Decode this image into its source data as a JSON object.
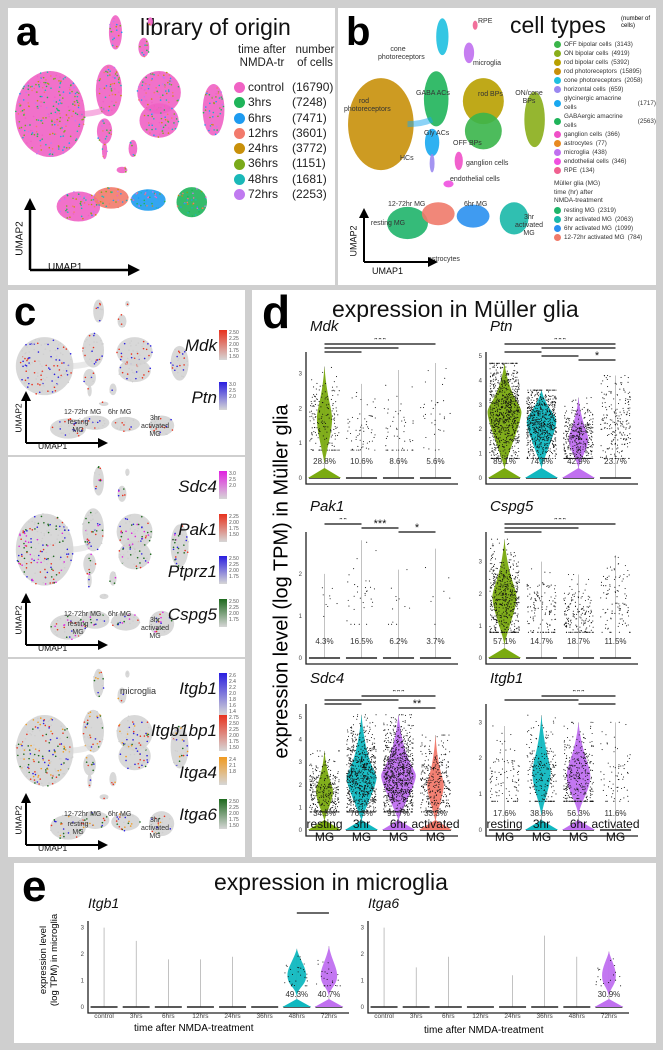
{
  "panel_a": {
    "letter": "a",
    "title": "library of origin",
    "legend_header": [
      "time after NMDA-tr",
      "number of cells"
    ],
    "legend": [
      {
        "label": "control",
        "count": "(16790)",
        "color": "#f062c4"
      },
      {
        "label": "3hrs",
        "count": "(7248)",
        "color": "#1fb45a"
      },
      {
        "label": "6hrs",
        "count": "(7471)",
        "color": "#1e9bf0"
      },
      {
        "label": "12hrs",
        "count": "(3601)",
        "color": "#f27a6c"
      },
      {
        "label": "24hrs",
        "count": "(3772)",
        "color": "#c8900a"
      },
      {
        "label": "36hrs",
        "count": "(1151)",
        "color": "#7aaa1a"
      },
      {
        "label": "48hrs",
        "count": "(1681)",
        "color": "#1ab8b8"
      },
      {
        "label": "72hrs",
        "count": "(2253)",
        "color": "#c07af0"
      }
    ],
    "axis_x": "UMAP1",
    "axis_y": "UMAP2"
  },
  "panel_b": {
    "letter": "b",
    "title": "cell types",
    "title_note": "(number of cells)",
    "legend": [
      {
        "label": "OFF bipolar cells",
        "count": "(3143)",
        "color": "#3ab54a"
      },
      {
        "label": "ON bipolar cells",
        "count": "(4919)",
        "color": "#8aae1a"
      },
      {
        "label": "rod bipolar cells",
        "count": "(5392)",
        "color": "#b8a000"
      },
      {
        "label": "rod photoreceptors",
        "count": "(15895)",
        "color": "#c8900a"
      },
      {
        "label": "cone photoreceptors",
        "count": "(2058)",
        "color": "#1ec0e0"
      },
      {
        "label": "horizontal cells",
        "count": "(659)",
        "color": "#9a88f0"
      },
      {
        "label": "glycinergic amacrine cells",
        "count": "(1717)",
        "color": "#18a8f0"
      },
      {
        "label": "GABAergic amacrine cells",
        "count": "(2563)",
        "color": "#1fb45a"
      },
      {
        "label": "ganglion cells",
        "count": "(366)",
        "color": "#f050c8"
      },
      {
        "label": "astrocytes",
        "count": "(77)",
        "color": "#e88a20"
      },
      {
        "label": "microglia",
        "count": "(438)",
        "color": "#c070f0"
      },
      {
        "label": "endothelial cells",
        "count": "(346)",
        "color": "#f050e0"
      },
      {
        "label": "RPE",
        "count": "(134)",
        "color": "#f06090"
      }
    ],
    "mg_header": [
      "Müller glia (MG)",
      "time (hr) after",
      "NMDA-treatment"
    ],
    "mg_legend": [
      {
        "label": "resting MG",
        "count": "(2319)",
        "color": "#1fb46a"
      },
      {
        "label": "3hr activated MG",
        "count": "(2063)",
        "color": "#1ab8a8"
      },
      {
        "label": "6hr activated MG",
        "count": "(1099)",
        "color": "#2a90f0"
      },
      {
        "label": "12-72hr activated MG",
        "count": "(784)",
        "color": "#f07a6a"
      }
    ],
    "umap_labels": {
      "cone": "cone photoreceptors",
      "rpe": "RPE",
      "microglia": "microglia",
      "rod": "rod photoreceptors",
      "gaba": "GABA ACs",
      "gly": "Gly ACs",
      "hc": "HCs",
      "rodbp": "rod BPs",
      "oncone": "ON/cone BPs",
      "offbp": "OFF BPs",
      "ganglion": "ganglion cells",
      "endo": "endothelial cells",
      "mg1272": "12-72hr MG",
      "mg6": "6hr MG",
      "mgrest": "resting MG",
      "mg3": "3hr activated MG",
      "astro": "astrocytes"
    },
    "axis_x": "UMAP1",
    "axis_y": "UMAP2"
  },
  "panel_c": {
    "letter": "c",
    "axis_x": "UMAP1",
    "axis_y": "UMAP2",
    "mg_labels": {
      "mg1272": "12-72hr MG",
      "mg6": "6hr MG",
      "mgrest": "resting MG",
      "mg3": "3hr activated MG",
      "microglia": "microglia"
    },
    "subpanels": [
      {
        "genes": [
          {
            "name": "Mdk",
            "color": "#e8321e",
            "ticks": [
              "2.50",
              "2.25",
              "2.00",
              "1.75",
              "1.50"
            ]
          },
          {
            "name": "Ptn",
            "color": "#2a1ee0",
            "ticks": [
              "3.0",
              "2.5",
              "2.0"
            ]
          }
        ]
      },
      {
        "genes": [
          {
            "name": "Sdc4",
            "color": "#e020e0",
            "ticks": [
              "3.0",
              "2.5",
              "2.0"
            ]
          },
          {
            "name": "Pak1",
            "color": "#e8321e",
            "ticks": [
              "2.25",
              "2.00",
              "1.75",
              "1.50"
            ]
          },
          {
            "name": "Ptprz1",
            "color": "#2a1ee0",
            "ticks": [
              "2.50",
              "2.25",
              "2.00",
              "1.75"
            ]
          },
          {
            "name": "Cspg5",
            "color": "#1e6a1e",
            "ticks": [
              "2.50",
              "2.25",
              "2.00",
              "1.75"
            ]
          }
        ]
      },
      {
        "genes": [
          {
            "name": "Itgb1",
            "color": "#2a1ee0",
            "ticks": [
              "2.6",
              "2.4",
              "2.2",
              "2.0",
              "1.8",
              "1.6",
              "1.4"
            ]
          },
          {
            "name": "Itgb1bp1",
            "color": "#e8321e",
            "ticks": [
              "2.75",
              "2.50",
              "2.25",
              "2.00",
              "1.75",
              "1.50"
            ]
          },
          {
            "name": "Itga4",
            "color": "#f09a20",
            "ticks": [
              "2.4",
              "2.1",
              "1.8"
            ]
          },
          {
            "name": "Itga6",
            "color": "#1e6a1e",
            "ticks": [
              "2.50",
              "2.25",
              "2.00",
              "1.75",
              "1.50"
            ]
          }
        ]
      }
    ]
  },
  "panel_d": {
    "letter": "d",
    "title": "expression in Müller glia",
    "ylabel": "expression level (log TPM) in Müller glia",
    "xlabels": [
      [
        "resting",
        "MG"
      ],
      [
        "3hr",
        "MG"
      ],
      [
        "6hr",
        "MG"
      ],
      [
        "activated",
        "MG"
      ]
    ]
  },
  "panel_e": {
    "letter": "e",
    "title": "expression in microglia",
    "ylabel": [
      "expression level",
      "(log TPM) in microglia"
    ],
    "xlabel": "time after NMDA-treatment"
  },
  "chart_data": [
    {
      "type": "violin",
      "gene": "Mdk",
      "ylim": [
        0,
        3.5
      ],
      "yticks": [
        0,
        1,
        2,
        3
      ],
      "categories": [
        "resting MG",
        "3hr MG",
        "6hr MG",
        "activated MG"
      ],
      "percent_expressing": [
        "28.8%",
        "10.6%",
        "8.6%",
        "5.6%"
      ],
      "max": [
        3.2,
        2.7,
        3.1,
        3.3
      ],
      "median": [
        1.7,
        1.4,
        1.3,
        1.8
      ],
      "violin_colors": [
        "#7aaa10",
        null,
        null,
        null
      ],
      "significance": [
        {
          "from": 0,
          "to": 3,
          "label": "***"
        },
        {
          "from": 0,
          "to": 2
        },
        {
          "from": 0,
          "to": 1
        }
      ]
    },
    {
      "type": "violin",
      "gene": "Ptn",
      "ylim": [
        0,
        5
      ],
      "yticks": [
        0,
        1,
        2,
        3,
        4,
        5
      ],
      "categories": [
        "resting MG",
        "3hr MG",
        "6hr MG",
        "activated MG"
      ],
      "percent_expressing": [
        "89.1%",
        "74.8%",
        "42.9%",
        "23.7%"
      ],
      "max": [
        4.7,
        3.6,
        3.3,
        4.2
      ],
      "median": [
        2.7,
        2.3,
        1.6,
        2.3
      ],
      "violin_colors": [
        "#7aaa10",
        "#10b8c0",
        "#c070f0",
        null
      ],
      "significance": [
        {
          "from": 0,
          "to": 3,
          "label": "***"
        },
        {
          "from": 1,
          "to": 3
        },
        {
          "from": 0,
          "to": 1
        },
        {
          "from": 1,
          "to": 2
        },
        {
          "from": 2,
          "to": 3,
          "label": "*"
        }
      ]
    },
    {
      "type": "violin",
      "gene": "Pak1",
      "ylim": [
        0,
        2.9
      ],
      "yticks": [
        0,
        1,
        2
      ],
      "categories": [
        "resting MG",
        "3hr MG",
        "6hr MG",
        "activated MG"
      ],
      "percent_expressing": [
        "4.3%",
        "16.5%",
        "6.2%",
        "3.7%"
      ],
      "max": [
        2.0,
        2.8,
        2.1,
        2.6
      ],
      "median": [
        1.3,
        1.4,
        1.2,
        1.5
      ],
      "violin_colors": [
        null,
        null,
        null,
        null
      ],
      "significance": [
        {
          "from": 0,
          "to": 1,
          "label": "**"
        },
        {
          "from": 1,
          "to": 2,
          "label": "***"
        },
        {
          "from": 2,
          "to": 3,
          "label": "*"
        }
      ]
    },
    {
      "type": "violin",
      "gene": "Cspg5",
      "ylim": [
        0,
        3.8
      ],
      "yticks": [
        0,
        1,
        2,
        3
      ],
      "categories": [
        "resting MG",
        "3hr MG",
        "6hr MG",
        "activated MG"
      ],
      "percent_expressing": [
        "57.1%",
        "14.7%",
        "18.7%",
        "11.5%"
      ],
      "max": [
        3.7,
        3.0,
        2.6,
        3.2
      ],
      "median": [
        1.9,
        1.5,
        1.3,
        1.8
      ],
      "violin_colors": [
        "#7aaa10",
        null,
        null,
        null
      ],
      "significance": [
        {
          "from": 0,
          "to": 3,
          "label": "***"
        },
        {
          "from": 0,
          "to": 2
        },
        {
          "from": 0,
          "to": 1
        }
      ]
    },
    {
      "type": "violin",
      "gene": "Sdc4",
      "ylim": [
        0,
        5.4
      ],
      "yticks": [
        0,
        1,
        2,
        3,
        4,
        5
      ],
      "categories": [
        "resting MG",
        "3hr MG",
        "6hr MG",
        "activated MG"
      ],
      "percent_expressing": [
        "34.5%",
        "76.3%",
        "91.7%",
        "33.3%"
      ],
      "max": [
        3.5,
        5.1,
        5.1,
        4.2
      ],
      "median": [
        1.7,
        2.3,
        2.4,
        2.0
      ],
      "violin_colors": [
        "#7aaa10",
        "#10b8c0",
        "#c070f0",
        "#f27a6c"
      ],
      "significance": [
        {
          "from": 1,
          "to": 3,
          "label": "***"
        },
        {
          "from": 0,
          "to": 2
        },
        {
          "from": 0,
          "to": 1
        },
        {
          "from": 2,
          "to": 3,
          "label": "**"
        }
      ]
    },
    {
      "type": "violin",
      "gene": "Itgb1",
      "ylim": [
        0,
        3.4
      ],
      "yticks": [
        0,
        1,
        2,
        3
      ],
      "categories": [
        "resting MG",
        "3hr MG",
        "6hr MG",
        "activated MG"
      ],
      "percent_expressing": [
        "17.6%",
        "38.8%",
        "56.3%",
        "11.6%"
      ],
      "max": [
        2.9,
        3.2,
        3.0,
        3.0
      ],
      "median": [
        1.5,
        1.6,
        1.5,
        1.7
      ],
      "violin_colors": [
        null,
        "#10b8c0",
        "#c070f0",
        null
      ],
      "significance": [
        {
          "from": 1,
          "to": 3,
          "label": "***"
        },
        {
          "from": 0,
          "to": 2
        },
        {
          "from": 2,
          "to": 3
        }
      ]
    },
    {
      "type": "violin",
      "gene": "Itgb1",
      "cell": "microglia",
      "ylim": [
        0,
        3.1
      ],
      "yticks": [
        0,
        1,
        2,
        3
      ],
      "categories": [
        "control",
        "3hrs",
        "6hrs",
        "12hrs",
        "24hrs",
        "36hrs",
        "48hrs",
        "72hrs"
      ],
      "percent_expressing": [
        "",
        "",
        "",
        "",
        "",
        "",
        "49.3%",
        "40.7%"
      ],
      "max": [
        3.0,
        2.5,
        1.8,
        1.8,
        1.9,
        0,
        2.2,
        2.3
      ],
      "violin_colors": [
        null,
        null,
        null,
        null,
        null,
        null,
        "#10b8c0",
        "#c070f0"
      ],
      "significance": [
        {
          "from": 6,
          "to": 7,
          "label": "**"
        }
      ]
    },
    {
      "type": "violin",
      "gene": "Itga6",
      "cell": "microglia",
      "ylim": [
        0,
        3.1
      ],
      "yticks": [
        0,
        1,
        2,
        3
      ],
      "categories": [
        "control",
        "3hrs",
        "6hrs",
        "12hrs",
        "24hrs",
        "36hrs",
        "48hrs",
        "72hrs"
      ],
      "percent_expressing": [
        "",
        "",
        "",
        "",
        "",
        "",
        "",
        "30.9%"
      ],
      "max": [
        3.0,
        1.5,
        1.9,
        0,
        1.2,
        2.7,
        1.9,
        2.1
      ],
      "violin_colors": [
        null,
        null,
        null,
        null,
        null,
        null,
        null,
        "#c070f0"
      ],
      "significance": [
        {
          "from": 7,
          "to": 7,
          "label": "**"
        }
      ]
    }
  ]
}
